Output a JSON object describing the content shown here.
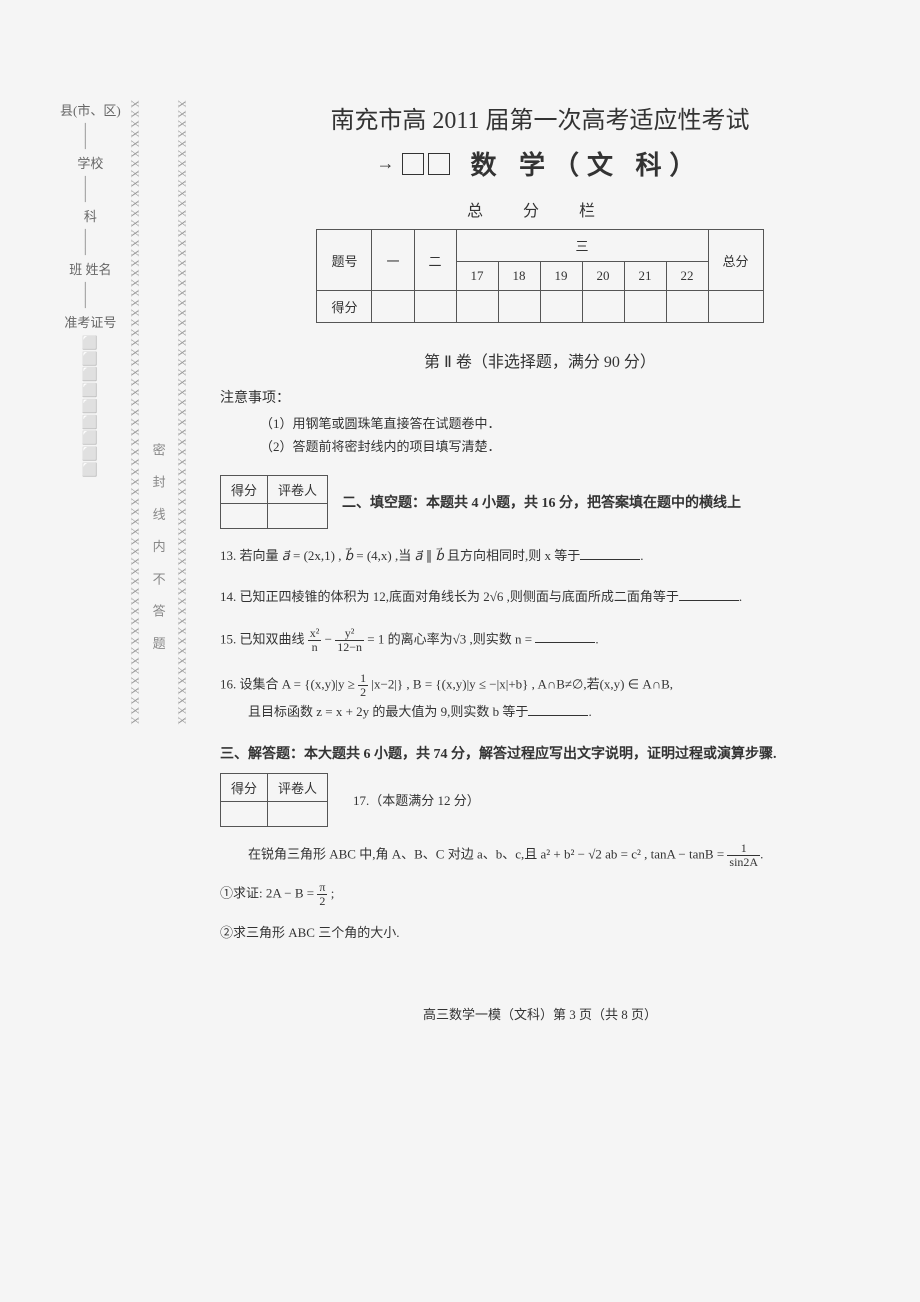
{
  "binding": {
    "label1_parts": [
      "县(市、区)",
      "学校",
      "科",
      "班 姓名",
      "准考证号"
    ],
    "seal_text": "密 封 线 内 不 答 题",
    "x_pattern": "XXXXXXXXXXXXXXXXXXXXXXXXXXXXXXXXXXXXXXXXXXXXXXXXXXXXXXXXXXXXXXX"
  },
  "header": {
    "title": "南充市高 2011 届第一次高考适应性考试",
    "subtitle": "数 学（文 科）",
    "score_bar_label": "总 分 栏"
  },
  "score_table": {
    "row_labels": [
      "题号",
      "得分"
    ],
    "col_headers": [
      "一",
      "二",
      "17",
      "18",
      "19",
      "20",
      "21",
      "22",
      "总分"
    ],
    "col_group_three": "三"
  },
  "section2": {
    "title": "第 Ⅱ 卷（非选择题，满分 90 分）",
    "notice_title": "注意事项：",
    "notice_items": [
      "（1）用钢笔或圆珠笔直接答在试题卷中．",
      "（2）答题前将密封线内的项目填写清楚．"
    ]
  },
  "small_table": {
    "col1": "得分",
    "col2": "评卷人"
  },
  "fill_section": {
    "desc": "二、填空题：本题共 4 小题，共 16 分，把答案填在题中的横线上"
  },
  "questions": {
    "q13_pre": "13. 若向量 ",
    "q13_mid1": " = (2x,1) , ",
    "q13_mid2": " = (4,x) ,当 ",
    "q13_mid3": " ∥ ",
    "q13_mid4": " 且方向相同时,则 x 等于",
    "q14": "14. 已知正四棱锥的体积为 12,底面对角线长为 2√6 ,则侧面与底面所成二面角等于",
    "q15_pre": "15. 已知双曲线",
    "q15_mid": " = 1 的离心率为√3 ,则实数 n = ",
    "q16_pre": "16. 设集合 A = {(x,y)|y ≥ ",
    "q16_mid1": "|x−2|} , B = {(x,y)|y ≤ −|x|+b} , A∩B≠∅,若(x,y) ∈ A∩B,",
    "q16_line2": "且目标函数 z = x + 2y 的最大值为 9,则实数 b 等于"
  },
  "section3": {
    "title": "三、解答题：本大题共 6 小题，共 74 分，解答过程应写出文字说明，证明过程或演算步骤.",
    "q17_label": "17.（本题满分 12 分）",
    "q17_text_pre": "在锐角三角形 ABC 中,角 A、B、C 对边 a、b、c,且 a² + b² − √2 ab = c² , tanA − tanB = ",
    "q17_sub1": "①求证: 2A − B = ",
    "q17_sub1_end": " ;",
    "q17_sub2": "②求三角形 ABC 三个角的大小."
  },
  "footer": "高三数学一模（文科）第 3 页（共 8 页）",
  "fractions": {
    "q15_num1": "x²",
    "q15_den1": "n",
    "q15_num2": "y²",
    "q15_den2": "12−n",
    "q16_num": "1",
    "q16_den": "2",
    "q17_num": "1",
    "q17_den": "sin2A",
    "q17s1_num": "π",
    "q17s1_den": "2"
  },
  "vectors": {
    "a": "a⃗",
    "b": "b⃗"
  }
}
